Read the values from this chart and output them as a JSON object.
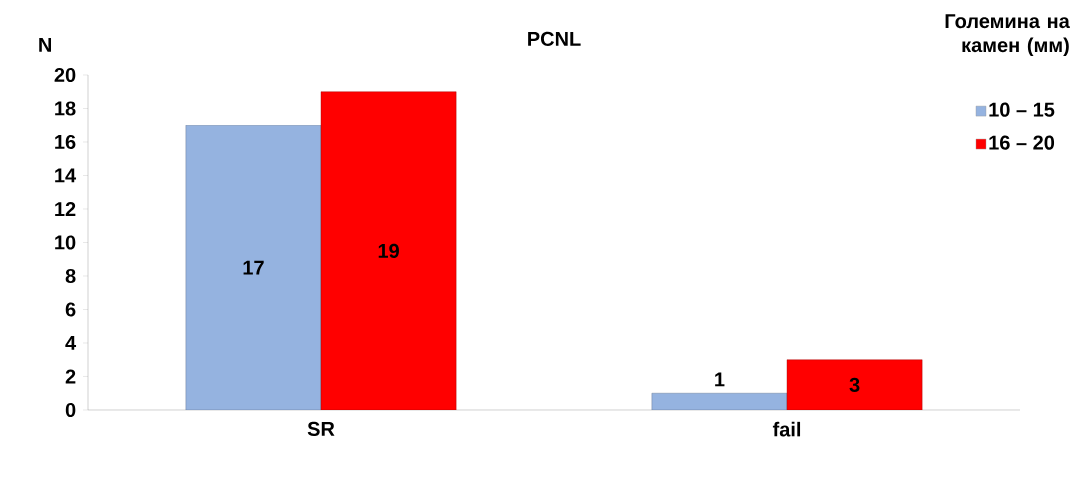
{
  "chart_data": {
    "type": "bar",
    "title": "PCNL",
    "ylabel": "N",
    "legend_title": "Големина на камен (мм)",
    "categories": [
      "SR",
      "fail"
    ],
    "series": [
      {
        "name": "10 – 15",
        "color": "#95b3e0",
        "values": [
          17,
          1
        ]
      },
      {
        "name": "16 – 20",
        "color": "#ff0000",
        "values": [
          19,
          3
        ]
      }
    ],
    "ylim": [
      0,
      20
    ],
    "yticks": [
      0,
      2,
      4,
      6,
      8,
      10,
      12,
      14,
      16,
      18,
      20
    ],
    "data_labels": true,
    "legend": "top right",
    "grid": false
  }
}
